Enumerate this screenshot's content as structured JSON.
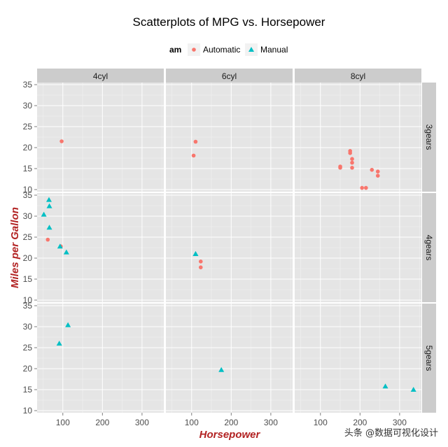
{
  "chart_data": {
    "type": "scatter",
    "title": "Scatterplots of MPG vs. Horsepower",
    "xlabel": "Horsepower",
    "ylabel": "Miles per Gallon",
    "xlim": [
      35,
      355
    ],
    "ylim": [
      9.5,
      35.5
    ],
    "x_ticks": [
      100,
      200,
      300
    ],
    "y_ticks": [
      10,
      15,
      20,
      25,
      30,
      35
    ],
    "grid": true,
    "facet_columns": [
      "4cyl",
      "6cyl",
      "8cyl"
    ],
    "facet_rows": [
      "3gears",
      "4gears",
      "5gears"
    ],
    "legend": {
      "title": "am",
      "placement": "top",
      "entries": [
        {
          "label": "Automatic",
          "color": "#F8766D",
          "shape": "circle"
        },
        {
          "label": "Manual",
          "color": "#00BFC4",
          "shape": "triangle"
        }
      ]
    },
    "series": [
      {
        "name": "Automatic",
        "points": [
          {
            "col": "4cyl",
            "row": "3gears",
            "x": 97,
            "y": 21.5
          },
          {
            "col": "4cyl",
            "row": "4gears",
            "x": 62,
            "y": 24.4
          },
          {
            "col": "4cyl",
            "row": "4gears",
            "x": 95,
            "y": 22.8
          },
          {
            "col": "6cyl",
            "row": "3gears",
            "x": 110,
            "y": 21.4
          },
          {
            "col": "6cyl",
            "row": "3gears",
            "x": 105,
            "y": 18.1
          },
          {
            "col": "6cyl",
            "row": "4gears",
            "x": 123,
            "y": 19.2
          },
          {
            "col": "6cyl",
            "row": "4gears",
            "x": 123,
            "y": 17.8
          },
          {
            "col": "8cyl",
            "row": "3gears",
            "x": 175,
            "y": 18.7
          },
          {
            "col": "8cyl",
            "row": "3gears",
            "x": 245,
            "y": 14.3
          },
          {
            "col": "8cyl",
            "row": "3gears",
            "x": 180,
            "y": 16.4
          },
          {
            "col": "8cyl",
            "row": "3gears",
            "x": 180,
            "y": 17.3
          },
          {
            "col": "8cyl",
            "row": "3gears",
            "x": 180,
            "y": 15.2
          },
          {
            "col": "8cyl",
            "row": "3gears",
            "x": 205,
            "y": 10.4
          },
          {
            "col": "8cyl",
            "row": "3gears",
            "x": 215,
            "y": 10.4
          },
          {
            "col": "8cyl",
            "row": "3gears",
            "x": 230,
            "y": 14.7
          },
          {
            "col": "8cyl",
            "row": "3gears",
            "x": 150,
            "y": 15.5
          },
          {
            "col": "8cyl",
            "row": "3gears",
            "x": 150,
            "y": 15.2
          },
          {
            "col": "8cyl",
            "row": "3gears",
            "x": 245,
            "y": 13.3
          },
          {
            "col": "8cyl",
            "row": "3gears",
            "x": 175,
            "y": 19.2
          }
        ]
      },
      {
        "name": "Manual",
        "points": [
          {
            "col": "4cyl",
            "row": "4gears",
            "x": 93,
            "y": 22.8
          },
          {
            "col": "4cyl",
            "row": "4gears",
            "x": 66,
            "y": 32.4
          },
          {
            "col": "4cyl",
            "row": "4gears",
            "x": 52,
            "y": 30.4
          },
          {
            "col": "4cyl",
            "row": "4gears",
            "x": 65,
            "y": 33.9
          },
          {
            "col": "4cyl",
            "row": "4gears",
            "x": 66,
            "y": 27.3
          },
          {
            "col": "4cyl",
            "row": "4gears",
            "x": 109,
            "y": 21.4
          },
          {
            "col": "6cyl",
            "row": "4gears",
            "x": 110,
            "y": 21.0
          },
          {
            "col": "6cyl",
            "row": "4gears",
            "x": 110,
            "y": 21.0
          },
          {
            "col": "4cyl",
            "row": "5gears",
            "x": 91,
            "y": 26.0
          },
          {
            "col": "4cyl",
            "row": "5gears",
            "x": 113,
            "y": 30.4
          },
          {
            "col": "6cyl",
            "row": "5gears",
            "x": 175,
            "y": 19.7
          },
          {
            "col": "8cyl",
            "row": "5gears",
            "x": 264,
            "y": 15.8
          },
          {
            "col": "8cyl",
            "row": "5gears",
            "x": 335,
            "y": 15.0
          }
        ]
      }
    ]
  },
  "watermark": "头条 @数据可视化设计"
}
